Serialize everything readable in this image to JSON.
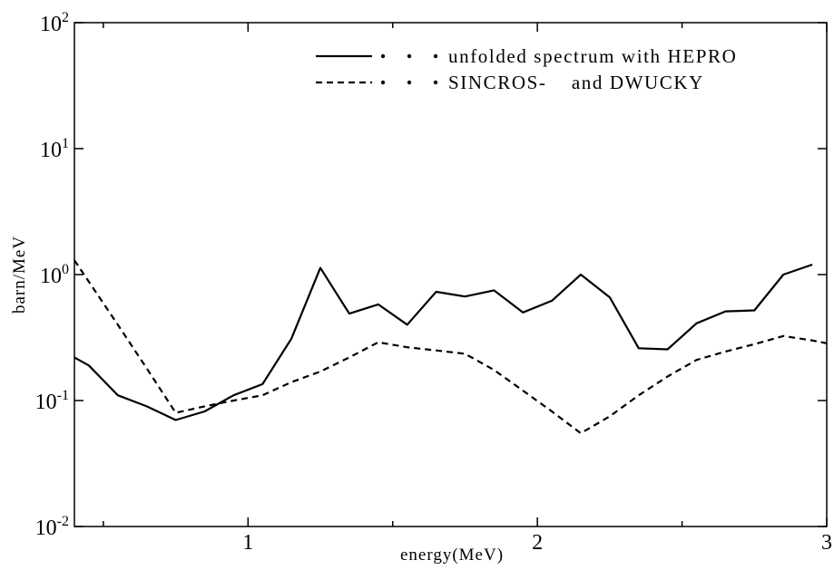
{
  "chart_data": {
    "type": "line",
    "title": "",
    "xlabel": "energy(MeV)",
    "ylabel": "barn/MeV",
    "xlim": [
      0.4,
      3.0
    ],
    "ylim": [
      0.01,
      100
    ],
    "yscale": "log",
    "grid": false,
    "legend_position": "top-right",
    "x_ticks": [
      {
        "value": 1,
        "label": "1"
      },
      {
        "value": 2,
        "label": "2"
      },
      {
        "value": 3,
        "label": "3"
      }
    ],
    "y_ticks": [
      {
        "value": 0.01,
        "base": "10",
        "exp": "-2"
      },
      {
        "value": 0.1,
        "base": "10",
        "exp": "-1"
      },
      {
        "value": 1,
        "base": "10",
        "exp": "0"
      },
      {
        "value": 10,
        "base": "10",
        "exp": "1"
      },
      {
        "value": 100,
        "base": "10",
        "exp": "2"
      }
    ],
    "series": [
      {
        "name": "unfolded spectrum with HEPRO",
        "style": "solid",
        "color": "#000000",
        "points": [
          [
            0.4,
            0.22
          ],
          [
            0.45,
            0.19
          ],
          [
            0.55,
            0.11
          ],
          [
            0.65,
            0.09
          ],
          [
            0.75,
            0.07
          ],
          [
            0.85,
            0.082
          ],
          [
            0.95,
            0.11
          ],
          [
            1.05,
            0.135
          ],
          [
            1.15,
            0.31
          ],
          [
            1.25,
            1.13
          ],
          [
            1.35,
            0.49
          ],
          [
            1.45,
            0.58
          ],
          [
            1.55,
            0.4
          ],
          [
            1.65,
            0.73
          ],
          [
            1.75,
            0.67
          ],
          [
            1.85,
            0.75
          ],
          [
            1.95,
            0.5
          ],
          [
            2.05,
            0.62
          ],
          [
            2.15,
            1.0
          ],
          [
            2.25,
            0.66
          ],
          [
            2.35,
            0.26
          ],
          [
            2.45,
            0.255
          ],
          [
            2.55,
            0.41
          ],
          [
            2.65,
            0.51
          ],
          [
            2.75,
            0.52
          ],
          [
            2.85,
            1.0
          ],
          [
            2.95,
            1.2
          ]
        ]
      },
      {
        "name": "SINCROS-    and DWUCKY",
        "style": "dashed",
        "color": "#000000",
        "points": [
          [
            0.4,
            1.3
          ],
          [
            0.55,
            0.4
          ],
          [
            0.65,
            0.18
          ],
          [
            0.75,
            0.08
          ],
          [
            0.85,
            0.09
          ],
          [
            0.95,
            0.1
          ],
          [
            1.05,
            0.11
          ],
          [
            1.15,
            0.14
          ],
          [
            1.25,
            0.17
          ],
          [
            1.35,
            0.22
          ],
          [
            1.45,
            0.29
          ],
          [
            1.55,
            0.265
          ],
          [
            1.65,
            0.25
          ],
          [
            1.75,
            0.235
          ],
          [
            1.85,
            0.175
          ],
          [
            1.95,
            0.12
          ],
          [
            2.05,
            0.082
          ],
          [
            2.15,
            0.055
          ],
          [
            2.25,
            0.075
          ],
          [
            2.35,
            0.11
          ],
          [
            2.45,
            0.155
          ],
          [
            2.55,
            0.21
          ],
          [
            2.65,
            0.245
          ],
          [
            2.75,
            0.28
          ],
          [
            2.85,
            0.325
          ],
          [
            2.95,
            0.3
          ],
          [
            3.0,
            0.285
          ]
        ]
      }
    ]
  }
}
